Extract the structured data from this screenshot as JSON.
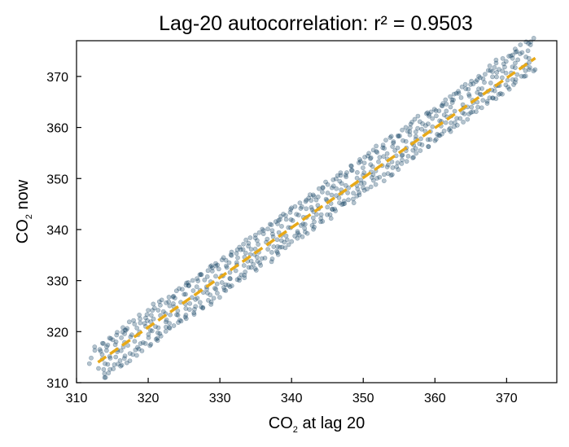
{
  "chart_data": {
    "type": "scatter",
    "title": "Lag-20 autocorrelation: r² = 0.9503",
    "xlabel": {
      "main": "CO",
      "sub": "2",
      "rest": " at lag 20"
    },
    "ylabel": {
      "main": "CO",
      "sub": "2",
      "rest": " now"
    },
    "xlim": [
      310,
      377
    ],
    "ylim": [
      310,
      377
    ],
    "xticks": [
      310,
      320,
      330,
      340,
      350,
      360,
      370
    ],
    "yticks": [
      310,
      320,
      330,
      340,
      350,
      360,
      370
    ],
    "grid": false,
    "colors": {
      "points": "#0b3a5e",
      "fit_line": "#e8a917",
      "axes": "#000000"
    },
    "points_note_free": true,
    "series": [
      {
        "kind": "scatter",
        "seasonal_cycle_points": true,
        "x_range": [
          313,
          374
        ],
        "trend_start": 313.0,
        "trend_end": 374.0,
        "amplitude": 3.5,
        "count": 700
      },
      {
        "kind": "line",
        "x": [
          313,
          374
        ],
        "y": [
          314.0,
          373.6
        ]
      }
    ]
  }
}
